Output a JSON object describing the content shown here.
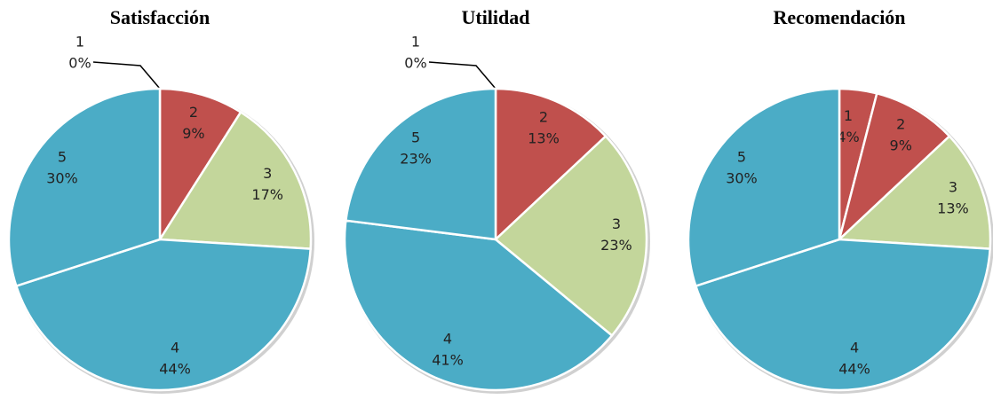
{
  "chart_data": [
    {
      "type": "pie",
      "title": "Satisfacción",
      "categories": [
        "1",
        "2",
        "3",
        "4",
        "5"
      ],
      "values": [
        0,
        9,
        17,
        44,
        30
      ],
      "value_labels": [
        "0%",
        "9%",
        "17%",
        "44%",
        "30%"
      ],
      "colors": [
        "#c0504d",
        "#c0504d",
        "#c3d69b",
        "#4bacc6",
        "#4bacc6"
      ]
    },
    {
      "type": "pie",
      "title": "Utilidad",
      "categories": [
        "1",
        "2",
        "3",
        "4",
        "5"
      ],
      "values": [
        0,
        13,
        23,
        41,
        23
      ],
      "value_labels": [
        "0%",
        "13%",
        "23%",
        "41%",
        "23%"
      ],
      "colors": [
        "#c0504d",
        "#c0504d",
        "#c3d69b",
        "#4bacc6",
        "#4bacc6"
      ]
    },
    {
      "type": "pie",
      "title": "Recomendación",
      "categories": [
        "1",
        "2",
        "3",
        "4",
        "5"
      ],
      "values": [
        4,
        9,
        13,
        44,
        30
      ],
      "value_labels": [
        "4%",
        "9%",
        "13%",
        "44%",
        "30%"
      ],
      "colors": [
        "#c0504d",
        "#c0504d",
        "#c3d69b",
        "#4bacc6",
        "#4bacc6"
      ]
    }
  ]
}
